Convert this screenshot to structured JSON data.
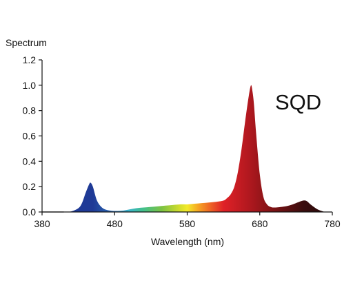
{
  "chart_data": {
    "type": "area",
    "ylabel": "Spectrum",
    "xlabel": "Wavelength (nm)",
    "annotation": "SQD",
    "xlim": [
      380,
      780
    ],
    "ylim": [
      0,
      1.2
    ],
    "xticks": [
      380,
      480,
      580,
      680,
      780
    ],
    "yticks": [
      0.0,
      0.2,
      0.4,
      0.6,
      0.8,
      1.0,
      1.2
    ],
    "grid": false,
    "x": [
      410,
      420,
      430,
      435,
      440,
      445,
      447,
      450,
      455,
      460,
      465,
      470,
      475,
      480,
      490,
      500,
      510,
      520,
      530,
      540,
      550,
      560,
      570,
      580,
      590,
      600,
      610,
      620,
      630,
      635,
      640,
      645,
      650,
      655,
      660,
      665,
      668,
      670,
      672,
      675,
      680,
      685,
      690,
      695,
      700,
      710,
      720,
      730,
      740,
      745,
      750,
      760,
      770
    ],
    "y": [
      0.0,
      0.004,
      0.03,
      0.07,
      0.15,
      0.22,
      0.23,
      0.2,
      0.1,
      0.05,
      0.025,
      0.015,
      0.01,
      0.008,
      0.01,
      0.02,
      0.03,
      0.035,
      0.04,
      0.045,
      0.05,
      0.055,
      0.06,
      0.06,
      0.065,
      0.07,
      0.075,
      0.08,
      0.09,
      0.11,
      0.14,
      0.2,
      0.32,
      0.5,
      0.72,
      0.92,
      1.0,
      0.95,
      0.85,
      0.62,
      0.3,
      0.12,
      0.06,
      0.04,
      0.035,
      0.04,
      0.05,
      0.07,
      0.09,
      0.085,
      0.06,
      0.02,
      0.0
    ],
    "colors": {
      "axis": "#111111",
      "baseline": "#222222",
      "gradient": [
        {
          "wl": 410,
          "color": "#1f3a96"
        },
        {
          "wl": 450,
          "color": "#1f3a96"
        },
        {
          "wl": 480,
          "color": "#2c6fb5"
        },
        {
          "wl": 500,
          "color": "#39b4c8"
        },
        {
          "wl": 520,
          "color": "#43c08a"
        },
        {
          "wl": 545,
          "color": "#7cc242"
        },
        {
          "wl": 570,
          "color": "#d4de2d"
        },
        {
          "wl": 580,
          "color": "#f3ea2a"
        },
        {
          "wl": 595,
          "color": "#f6a623"
        },
        {
          "wl": 610,
          "color": "#ef6a24"
        },
        {
          "wl": 630,
          "color": "#e02127"
        },
        {
          "wl": 665,
          "color": "#b1181f"
        },
        {
          "wl": 700,
          "color": "#7a1214"
        },
        {
          "wl": 740,
          "color": "#3a0d0e"
        },
        {
          "wl": 770,
          "color": "#2a0a0b"
        }
      ]
    }
  }
}
